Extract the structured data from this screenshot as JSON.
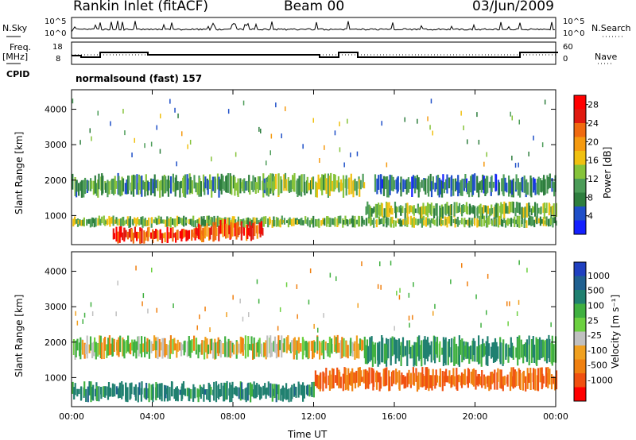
{
  "header": {
    "station": "Rankin Inlet (fitACF)",
    "beam": "Beam 00",
    "date": "03/Jun/2009",
    "program": "normalsound (fast) 157"
  },
  "side_labels": {
    "nsky": "N.Sky",
    "nsearch": "N.Search",
    "freq": "Freq.",
    "mhz": "[MHz]",
    "cpid": "CPID",
    "nave": "Nave"
  },
  "strip_ticks": {
    "nsky_left": [
      "10^5",
      "10^0"
    ],
    "nsearch_right": [
      "10^5",
      "10^0"
    ],
    "freq_left": [
      "18",
      "8"
    ],
    "nave_right": [
      "60",
      "0"
    ]
  },
  "colors": {
    "power": [
      "#1420ff",
      "#1f4fc8",
      "#2e7e3e",
      "#4c9c58",
      "#86c33a",
      "#f0c010",
      "#f59a10",
      "#f06a10",
      "#e01a10",
      "#ff0000"
    ],
    "velocity": [
      "#2040c0",
      "#206090",
      "#208070",
      "#40b040",
      "#6cd040",
      "#c0c0c0",
      "#f0a020",
      "#f08010",
      "#f05010",
      "#ff0000"
    ]
  },
  "chart_data": [
    {
      "type": "heatmap",
      "quantity": "power",
      "ylabel": "Slant Range [km]",
      "xlabel": "Time UT",
      "x_ticks": [
        "00:00",
        "04:00",
        "08:00",
        "12:00",
        "16:00",
        "20:00",
        "00:00"
      ],
      "xlim_hours": [
        0,
        24
      ],
      "y_ticks": [
        1000,
        2000,
        3000,
        4000
      ],
      "ylim_km": [
        180,
        4550
      ],
      "colorbar": {
        "label": "Power [dB]",
        "ticks": [
          4,
          8,
          12,
          16,
          20,
          24,
          28
        ],
        "range": [
          0,
          30
        ]
      },
      "bands": [
        {
          "t": [
            0.0,
            24.0
          ],
          "range_km": [
            650,
            1000
          ],
          "value": 12
        },
        {
          "t": [
            0.0,
            10.0
          ],
          "range_km": [
            1500,
            2200
          ],
          "value": 10
        },
        {
          "t": [
            9.5,
            14.5
          ],
          "range_km": [
            1500,
            2200
          ],
          "value": 13
        },
        {
          "t": [
            2.0,
            6.5
          ],
          "range_km": [
            200,
            700
          ],
          "value": 25
        },
        {
          "t": [
            6.0,
            9.5
          ],
          "range_km": [
            250,
            900
          ],
          "value": 24
        },
        {
          "t": [
            14.5,
            24.0
          ],
          "range_km": [
            900,
            1400
          ],
          "value": 12
        },
        {
          "t": [
            15.0,
            24.0
          ],
          "range_km": [
            1500,
            2200
          ],
          "value": 7
        }
      ]
    },
    {
      "type": "heatmap",
      "quantity": "velocity",
      "ylabel": "Slant Range [km]",
      "xlabel": "Time UT",
      "x_ticks": [
        "00:00",
        "04:00",
        "08:00",
        "12:00",
        "16:00",
        "20:00",
        "00:00"
      ],
      "xlim_hours": [
        0,
        24
      ],
      "y_ticks": [
        1000,
        2000,
        3000,
        4000
      ],
      "ylim_km": [
        180,
        4550
      ],
      "colorbar": {
        "label": "Velocity [m s⁻¹]",
        "ticks": [
          1000,
          500,
          100,
          25,
          -25,
          -100,
          -500,
          -1000
        ]
      },
      "bands": [
        {
          "t": [
            0.0,
            12.0
          ],
          "range_km": [
            300,
            900
          ],
          "value": 300
        },
        {
          "t": [
            0.0,
            14.5
          ],
          "range_km": [
            1500,
            2200
          ],
          "value": 0
        },
        {
          "t": [
            12.0,
            24.0
          ],
          "range_km": [
            600,
            1300
          ],
          "value": -300
        },
        {
          "t": [
            14.5,
            24.0
          ],
          "range_km": [
            1300,
            2200
          ],
          "value": 200
        }
      ]
    }
  ]
}
